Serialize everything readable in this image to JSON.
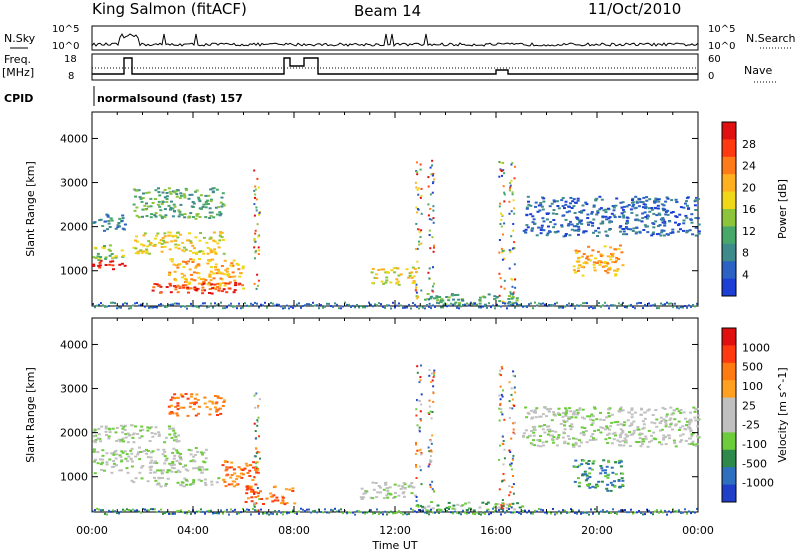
{
  "header": {
    "station": "King Salmon (fitACF)",
    "beam": "Beam 14",
    "date": "11/Oct/2010"
  },
  "top_panel": {
    "nsky_label": "N.Sky",
    "nsearch_label": "N.Search",
    "freq_label_1": "Freq.",
    "freq_label_2": "[MHz]",
    "nave_label": "Nave",
    "cpid_label": "CPID",
    "cpid_value": "normalsound (fast) 157",
    "noise_ticks": [
      "10^5",
      "10^0"
    ],
    "freq_ticks": [
      "18",
      "8"
    ],
    "nave_ticks": [
      "60",
      "0"
    ]
  },
  "chart_data": [
    {
      "type": "heatmap",
      "title": "",
      "ylabel": "Slant Range [km]",
      "xlabel": "",
      "ylim": [
        200,
        4600
      ],
      "yticks": [
        "1000",
        "2000",
        "3000",
        "4000"
      ],
      "colorbar_label": "Power [dB]",
      "colorbar_ticks": [
        "4",
        "8",
        "12",
        "16",
        "20",
        "24",
        "28"
      ],
      "colorbar_colors": [
        "#1e3fd6",
        "#2b62c4",
        "#3f8a8a",
        "#48a86a",
        "#8cc43c",
        "#f0d818",
        "#ffb020",
        "#ff7a18",
        "#ff3a10",
        "#e01010"
      ],
      "regions": [
        {
          "t0": 0.0,
          "t1": 1.3,
          "r0": 1050,
          "r1": 1250,
          "level": 9
        },
        {
          "t0": 0.0,
          "t1": 1.3,
          "r0": 1250,
          "r1": 1600,
          "level": 4
        },
        {
          "t0": 0.0,
          "t1": 1.3,
          "r0": 1900,
          "r1": 2300,
          "level": 2
        },
        {
          "t0": 1.6,
          "t1": 5.2,
          "r0": 1400,
          "r1": 1900,
          "level": 5
        },
        {
          "t0": 1.6,
          "t1": 5.2,
          "r0": 2200,
          "r1": 2900,
          "level": 3
        },
        {
          "t0": 3.0,
          "t1": 6.0,
          "r0": 600,
          "r1": 1300,
          "level": 6
        },
        {
          "t0": 2.3,
          "t1": 5.8,
          "r0": 500,
          "r1": 750,
          "level": 8
        },
        {
          "t0": 11.0,
          "t1": 12.8,
          "r0": 700,
          "r1": 1100,
          "level": 5
        },
        {
          "t0": 12.8,
          "t1": 16.8,
          "r0": 250,
          "r1": 500,
          "level": 3
        },
        {
          "t0": 19.0,
          "t1": 21.0,
          "r0": 900,
          "r1": 1600,
          "level": 6
        },
        {
          "t0": 17.0,
          "t1": 24.0,
          "r0": 1800,
          "r1": 2700,
          "level": 1
        }
      ]
    },
    {
      "type": "heatmap",
      "title": "",
      "ylabel": "Slant Range [km]",
      "xlabel": "Time UT",
      "ylim": [
        200,
        4600
      ],
      "yticks": [
        "1000",
        "2000",
        "3000",
        "4000"
      ],
      "xticks": [
        "00:00",
        "04:00",
        "08:00",
        "12:00",
        "16:00",
        "20:00",
        "00:00"
      ],
      "colorbar_label": "Velocity [m s^-1]",
      "colorbar_ticks": [
        "1000",
        "500",
        "100",
        "25",
        "-25",
        "-100",
        "-500",
        "-1000"
      ],
      "colorbar_colors": [
        "#1f3fc8",
        "#2e6fc0",
        "#2e8a4a",
        "#6ccc3c",
        "#c0c0c0",
        "#c0c0c0",
        "#ffa020",
        "#ff7a10",
        "#ff3a10",
        "#e01010"
      ],
      "regions": [
        {
          "t0": 0.0,
          "t1": 4.5,
          "r0": 1100,
          "r1": 1700,
          "level": 4
        },
        {
          "t0": 0.0,
          "t1": 3.5,
          "r0": 1800,
          "r1": 2200,
          "level": 4
        },
        {
          "t0": 1.5,
          "t1": 5.0,
          "r0": 800,
          "r1": 1000,
          "level": 4
        },
        {
          "t0": 3.0,
          "t1": 5.2,
          "r0": 2400,
          "r1": 2900,
          "level": 7
        },
        {
          "t0": 5.0,
          "t1": 6.5,
          "r0": 800,
          "r1": 1400,
          "level": 7
        },
        {
          "t0": 10.5,
          "t1": 12.8,
          "r0": 500,
          "r1": 900,
          "level": 4
        },
        {
          "t0": 12.8,
          "t1": 17.0,
          "r0": 250,
          "r1": 450,
          "level": 3
        },
        {
          "t0": 19.0,
          "t1": 21.0,
          "r0": 700,
          "r1": 1400,
          "level": 2
        },
        {
          "t0": 17.0,
          "t1": 24.0,
          "r0": 1700,
          "r1": 2600,
          "level": 4
        },
        {
          "t0": 6.0,
          "t1": 8.0,
          "r0": 400,
          "r1": 800,
          "level": 7
        }
      ]
    }
  ]
}
